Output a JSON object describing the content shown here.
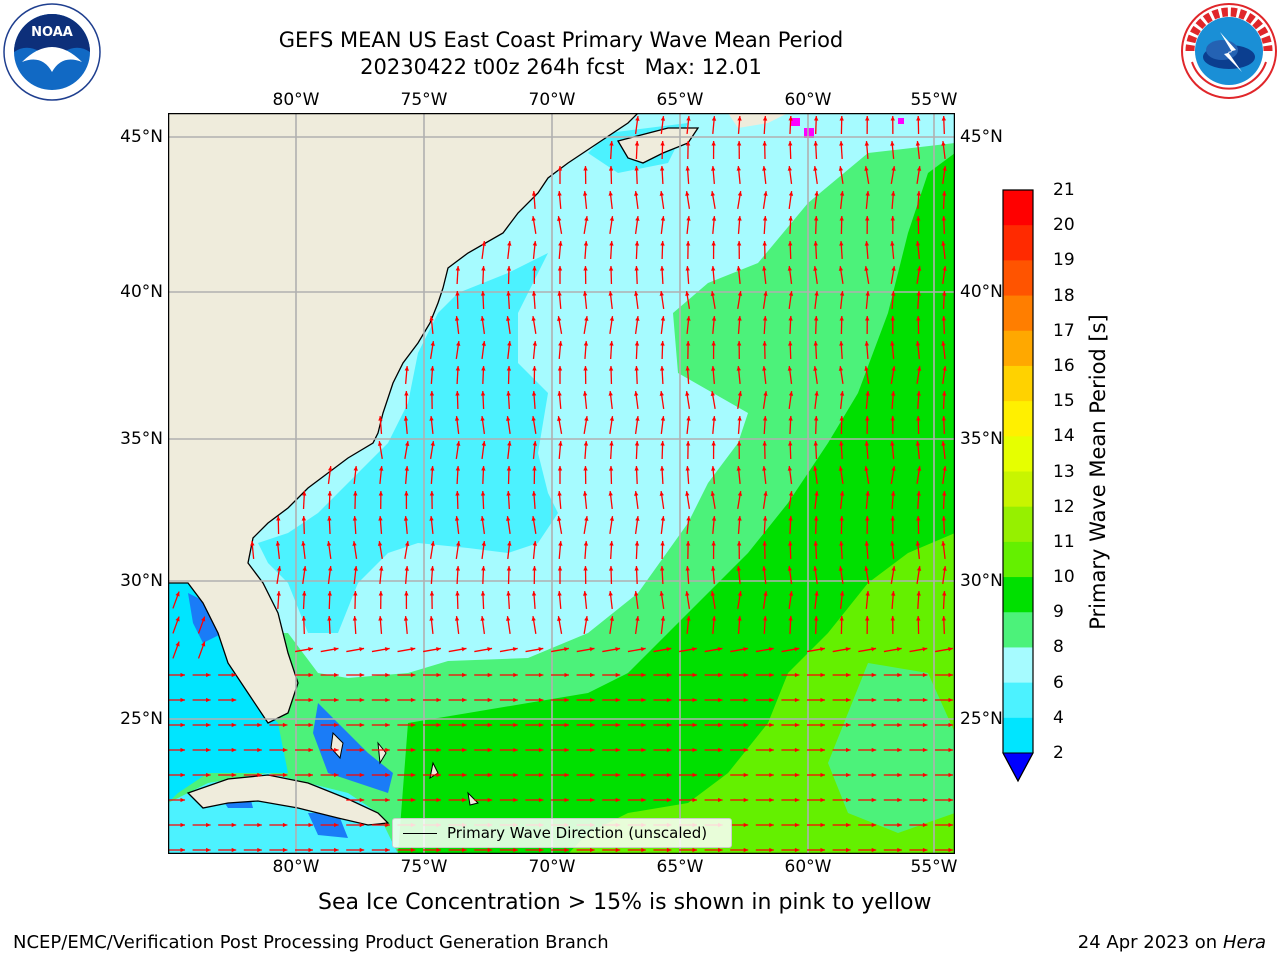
{
  "header": {
    "title_line1": "GEFS MEAN US East Coast Primary Wave Mean Period",
    "title_line2": "20230422 t00z 264h fcst   Max: 12.01",
    "logo_left": "NOAA",
    "logo_left_ring_text": "NATIONAL OCEANIC AND ATMOSPHERIC ADMINISTRATION · U.S. DEPARTMENT OF COMMERCE",
    "logo_right_ring_text": "NATIONAL WEATHER SERVICE"
  },
  "map": {
    "lon_ticks": [
      "80°W",
      "75°W",
      "70°W",
      "65°W",
      "60°W",
      "55°W"
    ],
    "lat_ticks": [
      "45°N",
      "40°N",
      "35°N",
      "30°N",
      "25°N"
    ],
    "colors": {
      "land": "#efecdc",
      "p2_4": "#1a7cf7",
      "p4_6": "#00e5ff",
      "p6_8": "#4cf2ff",
      "p8_9": "#a6fbff",
      "p9_10": "#4cf27a",
      "p10_11": "#00e000",
      "p11_12": "#64f000",
      "arrow": "#ff0000",
      "ice": "#ff00ff"
    },
    "legend_label": "Primary Wave Direction (unscaled)"
  },
  "colorbar": {
    "label": "Primary Wave Mean Period [s]",
    "ticks": [
      "21",
      "20",
      "19",
      "18",
      "17",
      "16",
      "15",
      "14",
      "13",
      "12",
      "11",
      "10",
      "9",
      "8",
      "6",
      "4",
      "2"
    ],
    "colors": [
      "#ff0000",
      "#ff2a00",
      "#ff5400",
      "#ff7e00",
      "#ffa800",
      "#ffd200",
      "#fff000",
      "#e6ff00",
      "#c8f500",
      "#96f000",
      "#64f000",
      "#00e000",
      "#4cf27a",
      "#a6fbff",
      "#4cf2ff",
      "#00e5ff",
      "#1a7cf7"
    ],
    "under_color": "#0000ff"
  },
  "caption": "Sea Ice Concentration > 15% is shown in pink to yellow",
  "footer": {
    "left": "NCEP/EMC/Verification Post Processing Product Generation Branch",
    "date": "24 Apr 2023 on ",
    "machine": "Hera"
  }
}
